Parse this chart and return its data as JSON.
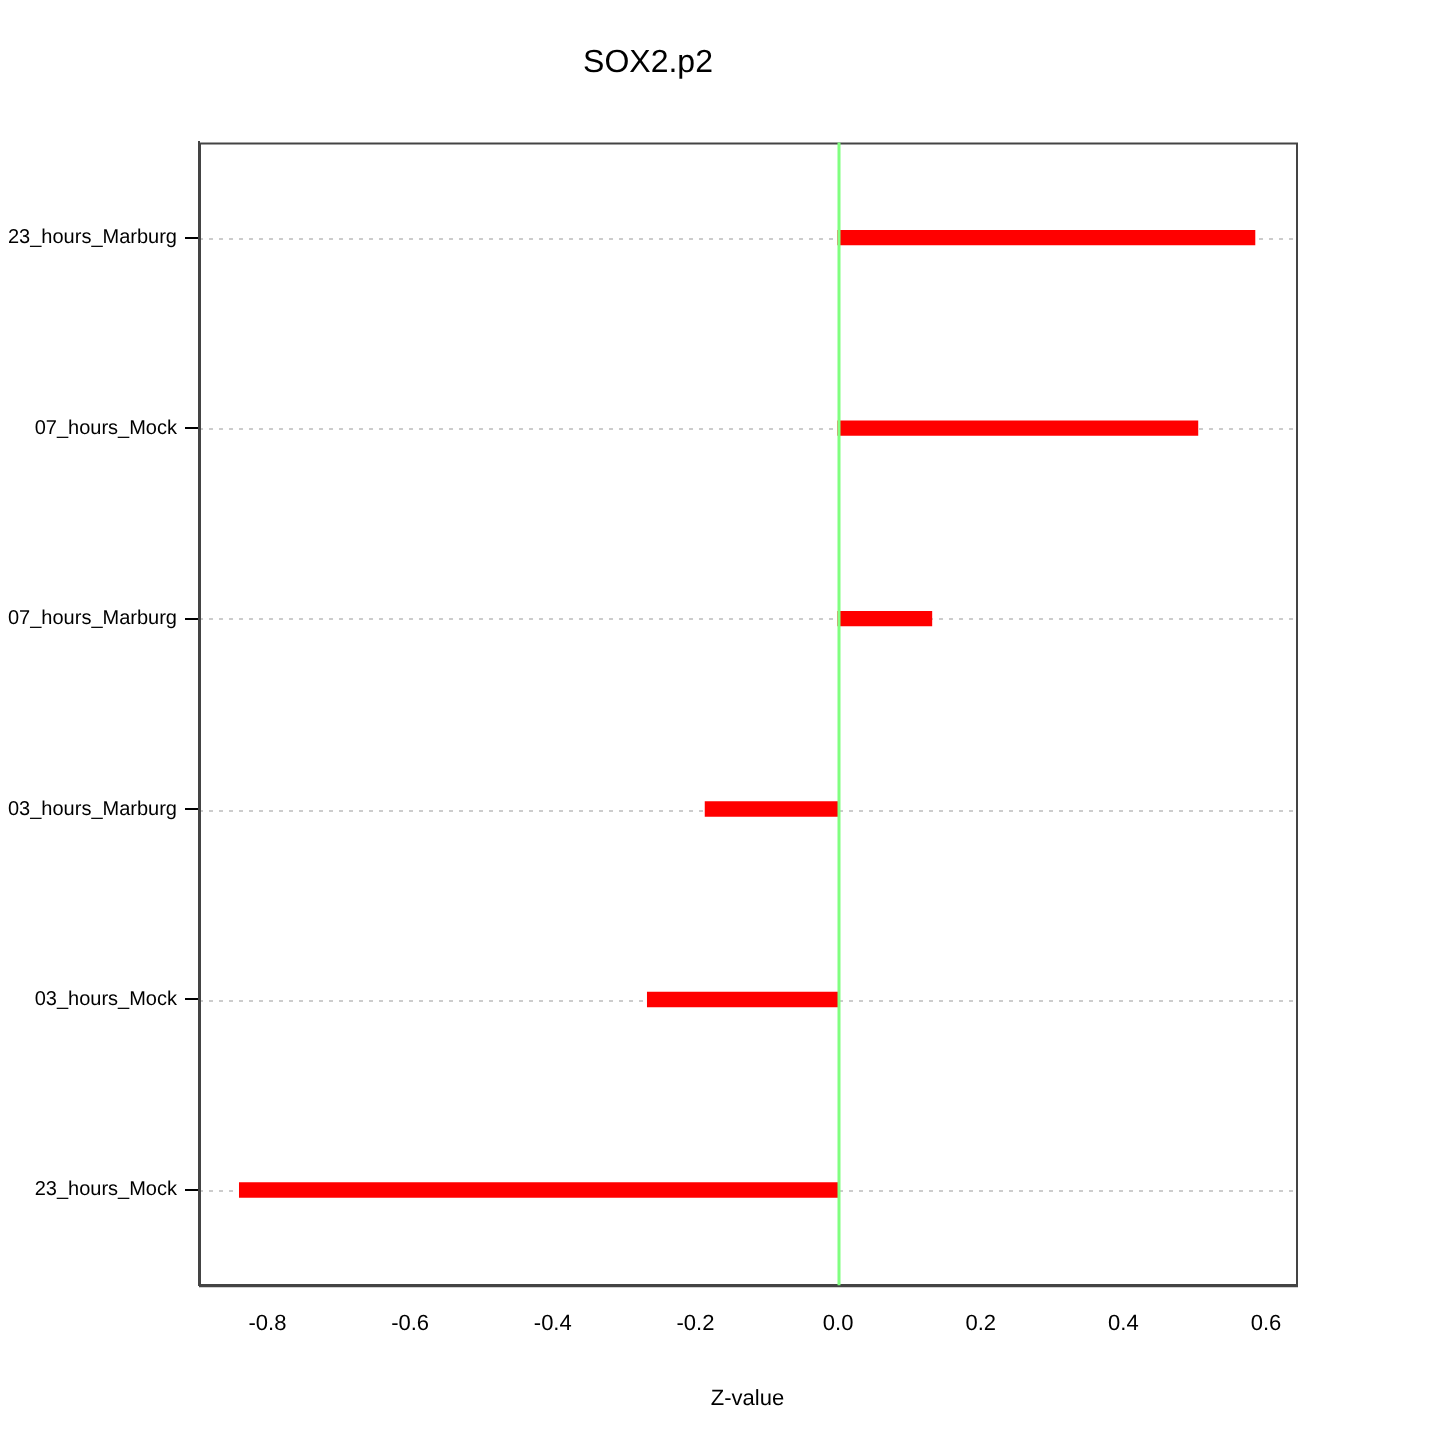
{
  "chart_data": {
    "type": "bar",
    "orientation": "horizontal",
    "title": "SOX2.p2",
    "xlabel": "Z-value",
    "categories": [
      "23_hours_Marburg",
      "07_hours_Mock",
      "07_hours_Marburg",
      "03_hours_Marburg",
      "03_hours_Mock",
      "23_hours_Mock"
    ],
    "values": [
      0.584,
      0.504,
      0.131,
      -0.186,
      -0.267,
      -0.839
    ],
    "color": "#ff0000",
    "xlim": [
      -0.896,
      0.642
    ],
    "xticks": [
      {
        "value": -0.8,
        "label": "-0.8"
      },
      {
        "value": -0.6,
        "label": "-0.6"
      },
      {
        "value": -0.4,
        "label": "-0.4"
      },
      {
        "value": -0.2,
        "label": "-0.2"
      },
      {
        "value": 0,
        "label": "0.0"
      },
      {
        "value": 0.2,
        "label": "0.2"
      },
      {
        "value": 0.4,
        "label": "0.4"
      },
      {
        "value": 0.6,
        "label": "0.6"
      }
    ],
    "ref_lines": [
      {
        "axis": "x",
        "value": 0,
        "color": "#80ff80"
      }
    ],
    "grid": "y"
  }
}
